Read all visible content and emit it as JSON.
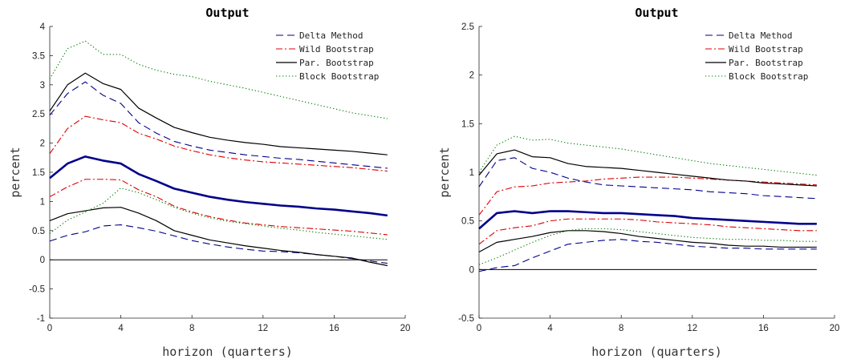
{
  "chart_data": [
    {
      "type": "line",
      "title": "Output",
      "xlabel": "horizon (quarters)",
      "ylabel": "percent",
      "xlim": [
        0,
        20
      ],
      "ylim": [
        -1,
        4
      ],
      "xticks": [
        0,
        4,
        8,
        12,
        16,
        20
      ],
      "yticks": [
        -1,
        -0.5,
        0,
        0.5,
        1,
        1.5,
        2,
        2.5,
        3,
        3.5,
        4
      ],
      "ytick_labels": [
        "-1",
        "-0.5",
        "0",
        "0.5",
        "1",
        "1.5",
        "2",
        "2.5",
        "3",
        "3.5",
        "4"
      ],
      "legend_position": "top-right",
      "x": [
        0,
        1,
        2,
        3,
        4,
        5,
        6,
        7,
        8,
        9,
        10,
        11,
        12,
        13,
        14,
        15,
        16,
        17,
        18,
        19
      ],
      "legend": [
        {
          "name": "Delta Method",
          "color": "#00008b",
          "dash": "dashed"
        },
        {
          "name": "Wild Bootstrap",
          "color": "#dd0000",
          "dash": "dashdot"
        },
        {
          "name": "Par. Bootstrap",
          "color": "#000000",
          "dash": "solid"
        },
        {
          "name": "Block Bootstrap",
          "color": "#008000",
          "dash": "dotted"
        }
      ],
      "series": [
        {
          "role": "point",
          "color": "#00008b",
          "dash": "thick",
          "values": [
            1.4,
            1.65,
            1.77,
            1.7,
            1.65,
            1.47,
            1.35,
            1.22,
            1.15,
            1.08,
            1.03,
            0.99,
            0.96,
            0.93,
            0.91,
            0.88,
            0.86,
            0.83,
            0.8,
            0.76
          ]
        },
        {
          "role": "band",
          "of": "Delta Method",
          "color": "#00008b",
          "dash": "dashed",
          "values": [
            2.48,
            2.85,
            3.05,
            2.82,
            2.68,
            2.35,
            2.17,
            2.03,
            1.95,
            1.88,
            1.84,
            1.8,
            1.77,
            1.74,
            1.72,
            1.69,
            1.66,
            1.63,
            1.6,
            1.57
          ]
        },
        {
          "role": "band",
          "of": "Delta Method",
          "color": "#00008b",
          "dash": "dashed",
          "values": [
            0.32,
            0.42,
            0.48,
            0.58,
            0.6,
            0.55,
            0.49,
            0.41,
            0.33,
            0.27,
            0.22,
            0.18,
            0.15,
            0.14,
            0.12,
            0.09,
            0.06,
            0.02,
            -0.02,
            -0.06
          ]
        },
        {
          "role": "band",
          "of": "Wild Bootstrap",
          "color": "#dd0000",
          "dash": "dashdot",
          "values": [
            1.82,
            2.25,
            2.46,
            2.4,
            2.35,
            2.17,
            2.07,
            1.95,
            1.87,
            1.8,
            1.75,
            1.71,
            1.68,
            1.66,
            1.64,
            1.62,
            1.6,
            1.58,
            1.55,
            1.52
          ]
        },
        {
          "role": "band",
          "of": "Wild Bootstrap",
          "color": "#dd0000",
          "dash": "dashdot",
          "values": [
            1.08,
            1.25,
            1.38,
            1.38,
            1.37,
            1.2,
            1.08,
            0.92,
            0.82,
            0.74,
            0.68,
            0.63,
            0.6,
            0.57,
            0.55,
            0.53,
            0.51,
            0.49,
            0.46,
            0.43
          ]
        },
        {
          "role": "band",
          "of": "Par. Bootstrap",
          "color": "#000000",
          "dash": "solid",
          "values": [
            2.55,
            3.0,
            3.2,
            3.02,
            2.92,
            2.6,
            2.43,
            2.27,
            2.18,
            2.1,
            2.05,
            2.01,
            1.98,
            1.94,
            1.92,
            1.9,
            1.88,
            1.86,
            1.83,
            1.8
          ]
        },
        {
          "role": "band",
          "of": "Par. Bootstrap",
          "color": "#000000",
          "dash": "solid",
          "values": [
            0.67,
            0.79,
            0.84,
            0.89,
            0.9,
            0.8,
            0.67,
            0.5,
            0.42,
            0.34,
            0.29,
            0.24,
            0.2,
            0.16,
            0.13,
            0.09,
            0.06,
            0.03,
            -0.04,
            -0.1
          ]
        },
        {
          "role": "band",
          "of": "Block Bootstrap",
          "color": "#008000",
          "dash": "dotted",
          "values": [
            3.1,
            3.62,
            3.75,
            3.52,
            3.52,
            3.35,
            3.25,
            3.18,
            3.14,
            3.06,
            3.0,
            2.94,
            2.87,
            2.8,
            2.73,
            2.66,
            2.59,
            2.52,
            2.47,
            2.42
          ]
        },
        {
          "role": "band",
          "of": "Block Bootstrap",
          "color": "#008000",
          "dash": "dotted",
          "values": [
            0.45,
            0.68,
            0.82,
            0.97,
            1.23,
            1.15,
            1.03,
            0.9,
            0.8,
            0.72,
            0.66,
            0.62,
            0.58,
            0.54,
            0.51,
            0.47,
            0.44,
            0.41,
            0.38,
            0.35
          ]
        }
      ]
    },
    {
      "type": "line",
      "title": "Output",
      "xlabel": "horizon (quarters)",
      "ylabel": "percent",
      "xlim": [
        0,
        20
      ],
      "ylim": [
        -0.5,
        2.5
      ],
      "xticks": [
        0,
        4,
        8,
        12,
        16,
        20
      ],
      "yticks": [
        -0.5,
        0,
        0.5,
        1,
        1.5,
        2,
        2.5
      ],
      "ytick_labels": [
        "-0.5",
        "0",
        "0.5",
        "1",
        "1.5",
        "2",
        "2.5"
      ],
      "legend_position": "top-right",
      "x": [
        0,
        1,
        2,
        3,
        4,
        5,
        6,
        7,
        8,
        9,
        10,
        11,
        12,
        13,
        14,
        15,
        16,
        17,
        18,
        19
      ],
      "legend": [
        {
          "name": "Delta Method",
          "color": "#00008b",
          "dash": "dashed"
        },
        {
          "name": "Wild Bootstrap",
          "color": "#dd0000",
          "dash": "dashdot"
        },
        {
          "name": "Par. Bootstrap",
          "color": "#000000",
          "dash": "solid"
        },
        {
          "name": "Block Bootstrap",
          "color": "#008000",
          "dash": "dotted"
        }
      ],
      "series": [
        {
          "role": "point",
          "color": "#00008b",
          "dash": "thick",
          "values": [
            0.42,
            0.58,
            0.6,
            0.58,
            0.6,
            0.6,
            0.59,
            0.58,
            0.58,
            0.57,
            0.56,
            0.55,
            0.53,
            0.52,
            0.51,
            0.5,
            0.49,
            0.48,
            0.47,
            0.47
          ]
        },
        {
          "role": "band",
          "of": "Delta Method",
          "color": "#00008b",
          "dash": "dashed",
          "values": [
            0.85,
            1.12,
            1.15,
            1.04,
            1.0,
            0.94,
            0.9,
            0.87,
            0.86,
            0.85,
            0.84,
            0.83,
            0.82,
            0.8,
            0.79,
            0.78,
            0.76,
            0.75,
            0.74,
            0.73
          ]
        },
        {
          "role": "band",
          "of": "Delta Method",
          "color": "#00008b",
          "dash": "dashed",
          "values": [
            -0.02,
            0.02,
            0.04,
            0.12,
            0.19,
            0.26,
            0.28,
            0.3,
            0.31,
            0.29,
            0.28,
            0.26,
            0.24,
            0.23,
            0.22,
            0.22,
            0.21,
            0.21,
            0.21,
            0.21
          ]
        },
        {
          "role": "band",
          "of": "Wild Bootstrap",
          "color": "#dd0000",
          "dash": "dashdot",
          "values": [
            0.56,
            0.8,
            0.85,
            0.86,
            0.89,
            0.9,
            0.91,
            0.93,
            0.94,
            0.95,
            0.95,
            0.95,
            0.94,
            0.93,
            0.92,
            0.91,
            0.9,
            0.89,
            0.88,
            0.87
          ]
        },
        {
          "role": "band",
          "of": "Wild Bootstrap",
          "color": "#dd0000",
          "dash": "dashdot",
          "values": [
            0.26,
            0.4,
            0.43,
            0.45,
            0.5,
            0.52,
            0.52,
            0.52,
            0.52,
            0.51,
            0.49,
            0.48,
            0.47,
            0.46,
            0.44,
            0.43,
            0.42,
            0.41,
            0.4,
            0.4
          ]
        },
        {
          "role": "band",
          "of": "Par. Bootstrap",
          "color": "#000000",
          "dash": "solid",
          "values": [
            0.97,
            1.19,
            1.23,
            1.16,
            1.15,
            1.09,
            1.06,
            1.05,
            1.04,
            1.02,
            1.0,
            0.98,
            0.96,
            0.94,
            0.92,
            0.91,
            0.89,
            0.88,
            0.87,
            0.86
          ]
        },
        {
          "role": "band",
          "of": "Par. Bootstrap",
          "color": "#000000",
          "dash": "solid",
          "values": [
            0.18,
            0.28,
            0.31,
            0.34,
            0.38,
            0.4,
            0.4,
            0.39,
            0.37,
            0.34,
            0.32,
            0.3,
            0.28,
            0.27,
            0.25,
            0.24,
            0.24,
            0.23,
            0.23,
            0.23
          ]
        },
        {
          "role": "band",
          "of": "Block Bootstrap",
          "color": "#008000",
          "dash": "dotted",
          "values": [
            1.0,
            1.28,
            1.37,
            1.33,
            1.34,
            1.3,
            1.28,
            1.26,
            1.24,
            1.21,
            1.18,
            1.15,
            1.12,
            1.09,
            1.07,
            1.05,
            1.03,
            1.01,
            0.99,
            0.97
          ]
        },
        {
          "role": "band",
          "of": "Block Bootstrap",
          "color": "#008000",
          "dash": "dotted",
          "values": [
            0.05,
            0.12,
            0.2,
            0.28,
            0.35,
            0.4,
            0.42,
            0.42,
            0.41,
            0.39,
            0.37,
            0.35,
            0.33,
            0.32,
            0.31,
            0.31,
            0.3,
            0.3,
            0.29,
            0.29
          ]
        }
      ]
    }
  ]
}
